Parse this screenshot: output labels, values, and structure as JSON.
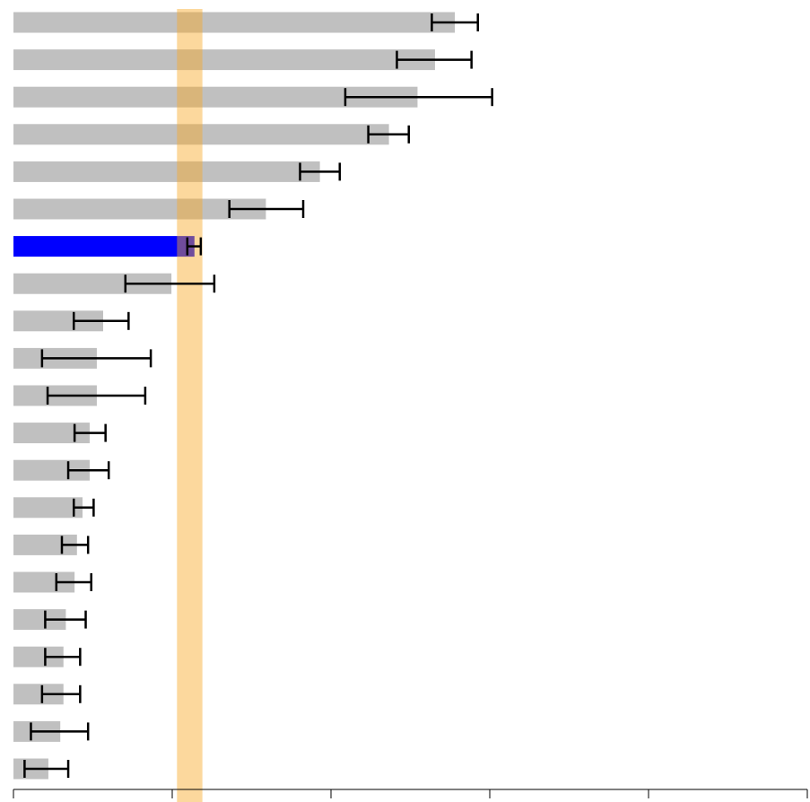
{
  "chart_data": {
    "type": "bar",
    "orientation": "horizontal",
    "title": "",
    "xlabel": "",
    "ylabel": "",
    "xlim": [
      0,
      1.0
    ],
    "grid": false,
    "legend": "none",
    "x_ticks": [
      0,
      0.2,
      0.4,
      0.6,
      0.8,
      1.0
    ],
    "x_tick_labels": [],
    "highlight_band": {
      "from": 0.206,
      "to": 0.238,
      "color": "#f9a825"
    },
    "colors": {
      "default_bar": "#c0c0c0",
      "highlight_bar": "#0000ff",
      "error_bar": "#000000"
    },
    "bars": [
      {
        "value": 0.556,
        "err_low": 0.527,
        "err_high": 0.585,
        "highlight": false
      },
      {
        "value": 0.531,
        "err_low": 0.483,
        "err_high": 0.577,
        "highlight": false
      },
      {
        "value": 0.509,
        "err_low": 0.418,
        "err_high": 0.603,
        "highlight": false
      },
      {
        "value": 0.473,
        "err_low": 0.447,
        "err_high": 0.498,
        "highlight": false
      },
      {
        "value": 0.386,
        "err_low": 0.361,
        "err_high": 0.411,
        "highlight": false
      },
      {
        "value": 0.318,
        "err_low": 0.272,
        "err_high": 0.365,
        "highlight": false
      },
      {
        "value": 0.228,
        "err_low": 0.219,
        "err_high": 0.236,
        "highlight": true
      },
      {
        "value": 0.199,
        "err_low": 0.141,
        "err_high": 0.253,
        "highlight": false
      },
      {
        "value": 0.113,
        "err_low": 0.076,
        "err_high": 0.145,
        "highlight": false
      },
      {
        "value": 0.105,
        "err_low": 0.036,
        "err_high": 0.173,
        "highlight": false
      },
      {
        "value": 0.105,
        "err_low": 0.043,
        "err_high": 0.166,
        "highlight": false
      },
      {
        "value": 0.096,
        "err_low": 0.077,
        "err_high": 0.116,
        "highlight": false
      },
      {
        "value": 0.096,
        "err_low": 0.069,
        "err_high": 0.12,
        "highlight": false
      },
      {
        "value": 0.087,
        "err_low": 0.076,
        "err_high": 0.101,
        "highlight": false
      },
      {
        "value": 0.08,
        "err_low": 0.061,
        "err_high": 0.094,
        "highlight": false
      },
      {
        "value": 0.077,
        "err_low": 0.054,
        "err_high": 0.098,
        "highlight": false
      },
      {
        "value": 0.066,
        "err_low": 0.04,
        "err_high": 0.091,
        "highlight": false
      },
      {
        "value": 0.063,
        "err_low": 0.04,
        "err_high": 0.084,
        "highlight": false
      },
      {
        "value": 0.063,
        "err_low": 0.036,
        "err_high": 0.084,
        "highlight": false
      },
      {
        "value": 0.059,
        "err_low": 0.022,
        "err_high": 0.094,
        "highlight": false
      },
      {
        "value": 0.044,
        "err_low": 0.014,
        "err_high": 0.069,
        "highlight": false
      }
    ]
  }
}
